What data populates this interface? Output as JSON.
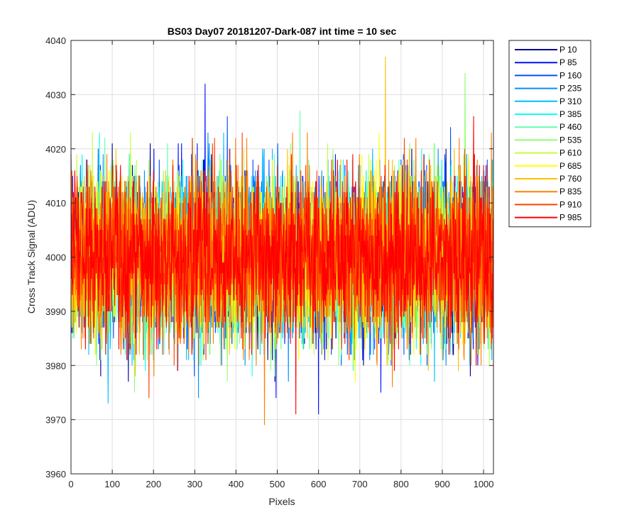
{
  "chart_data": {
    "type": "line",
    "title": "BS03 Day07 20181207-Dark-087 int time = 10 sec",
    "xlabel": "Pixels",
    "ylabel": "Cross Track Signal (ADU)",
    "xlim": [
      0,
      1024
    ],
    "ylim": [
      3960,
      4040
    ],
    "xticks": [
      0,
      100,
      200,
      300,
      400,
      500,
      600,
      700,
      800,
      900,
      1000
    ],
    "yticks": [
      3960,
      3970,
      3980,
      3990,
      4000,
      4010,
      4020,
      4030,
      4040
    ],
    "grid": true,
    "legend_position": "outside-top-right",
    "noise": {
      "mean": 4000,
      "std_approx": 8,
      "min_observed": 3969,
      "max_observed": 4037,
      "samples_per_series": 1024
    },
    "series": [
      {
        "name": "P 10",
        "color": "#00008f"
      },
      {
        "name": "P 85",
        "color": "#0010ff"
      },
      {
        "name": "P 160",
        "color": "#0050ff"
      },
      {
        "name": "P 235",
        "color": "#0090ff"
      },
      {
        "name": "P 310",
        "color": "#00c0ff"
      },
      {
        "name": "P 385",
        "color": "#10ffef"
      },
      {
        "name": "P 460",
        "color": "#60ffb0"
      },
      {
        "name": "P 535",
        "color": "#90ff70"
      },
      {
        "name": "P 610",
        "color": "#c0ff40"
      },
      {
        "name": "P 685",
        "color": "#ffff00"
      },
      {
        "name": "P 760",
        "color": "#ffc000"
      },
      {
        "name": "P 835",
        "color": "#ff8000"
      },
      {
        "name": "P 910",
        "color": "#ff4000"
      },
      {
        "name": "P 985",
        "color": "#ff0000"
      }
    ],
    "notable_peaks": [
      {
        "series": "P 85",
        "x": 325,
        "y": 4032
      },
      {
        "series": "P 760",
        "x": 762,
        "y": 4037
      },
      {
        "series": "P 535",
        "x": 955,
        "y": 4034
      },
      {
        "series": "P 835",
        "x": 469,
        "y": 3969
      },
      {
        "series": "P 985",
        "x": 545,
        "y": 3971
      },
      {
        "series": "P 85",
        "x": 600,
        "y": 3971
      },
      {
        "series": "P 310",
        "x": 90,
        "y": 3973
      }
    ]
  }
}
